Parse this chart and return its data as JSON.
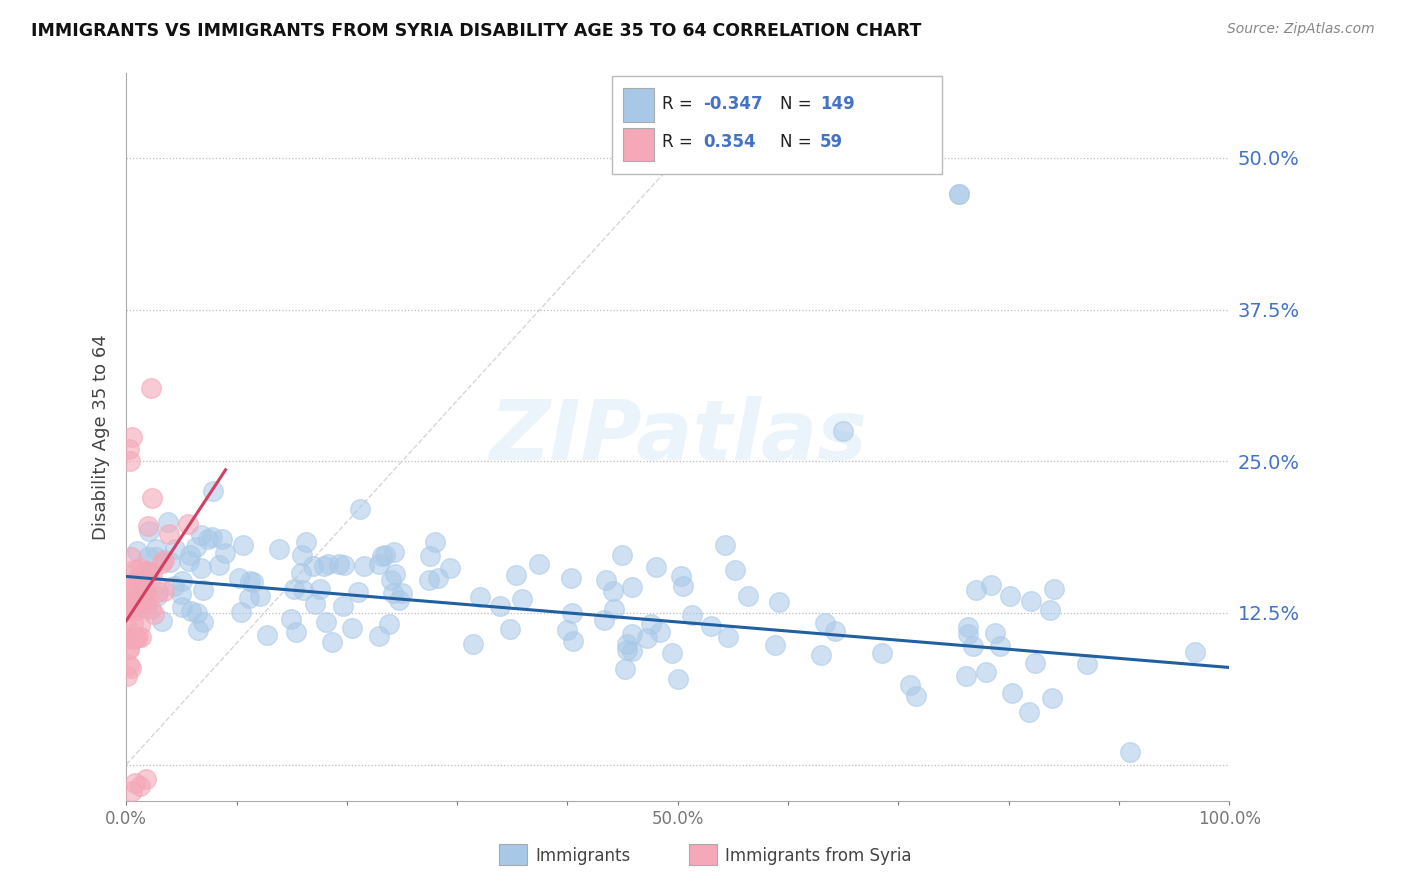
{
  "title": "IMMIGRANTS VS IMMIGRANTS FROM SYRIA DISABILITY AGE 35 TO 64 CORRELATION CHART",
  "source": "Source: ZipAtlas.com",
  "ylabel": "Disability Age 35 to 64",
  "xlim": [
    0.0,
    1.0
  ],
  "ylim": [
    -0.03,
    0.57
  ],
  "yticks": [
    0.0,
    0.125,
    0.25,
    0.375,
    0.5
  ],
  "ytick_labels": [
    "",
    "12.5%",
    "25.0%",
    "37.5%",
    "50.0%"
  ],
  "xticks": [
    0.0,
    0.1,
    0.2,
    0.3,
    0.4,
    0.5,
    0.6,
    0.7,
    0.8,
    0.9,
    1.0
  ],
  "xtick_labels": [
    "0.0%",
    "",
    "",
    "",
    "",
    "50.0%",
    "",
    "",
    "",
    "",
    "100.0%"
  ],
  "blue_color": "#a8c8e8",
  "pink_color": "#f4a8b8",
  "blue_line_color": "#2060a0",
  "pink_line_color": "#d04060",
  "diag_color": "#cccccc",
  "legend_blue_label": "Immigrants",
  "legend_pink_label": "Immigrants from Syria",
  "N_blue": 149,
  "N_pink": 59,
  "watermark": "ZIPatlas",
  "stat_color": "#4472c4",
  "background_color": "#ffffff",
  "seed": 42
}
